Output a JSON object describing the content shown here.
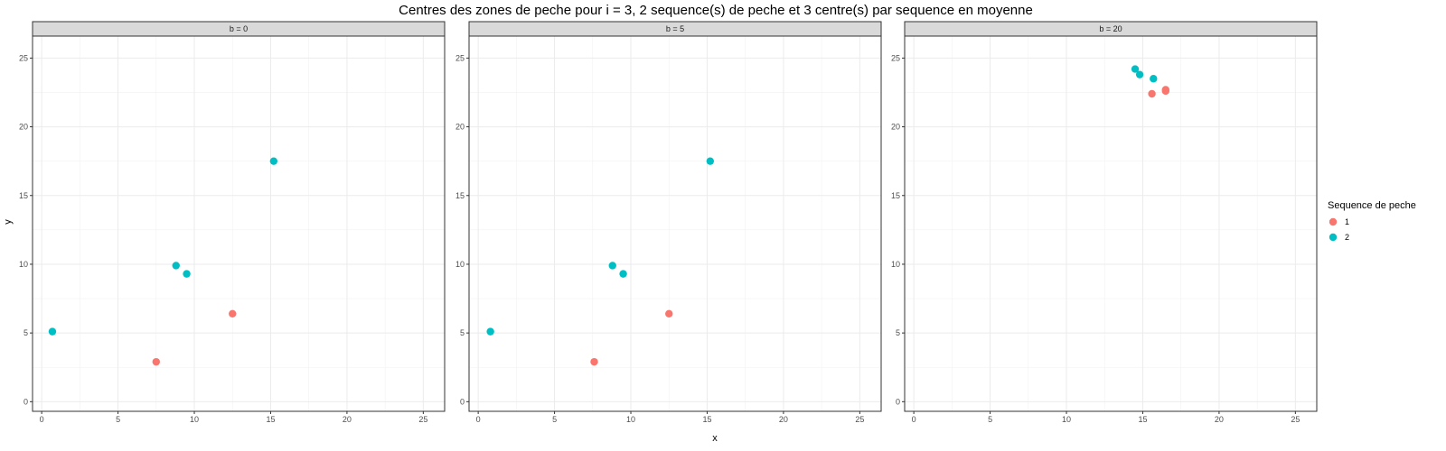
{
  "chart_data": {
    "type": "scatter",
    "title": "Centres des zones de peche pour i = 3, 2 sequence(s) de peche et 3 centre(s) par sequence en moyenne",
    "xlabel": "x",
    "ylabel": "y",
    "xlim": [
      -0.6,
      26.4
    ],
    "ylim": [
      -0.7,
      26.6
    ],
    "x_ticks": [
      0,
      5,
      10,
      15,
      20,
      25
    ],
    "y_ticks": [
      0,
      5,
      10,
      15,
      20,
      25
    ],
    "grid": true,
    "legend": {
      "title": "Sequence de peche",
      "placement": "right",
      "entries": [
        {
          "label": "1",
          "color": "#F8766D"
        },
        {
          "label": "2",
          "color": "#00BFC4"
        }
      ]
    },
    "facets": [
      {
        "label": "b = 0",
        "points": [
          {
            "x": 7.5,
            "y": 2.9,
            "series": "1"
          },
          {
            "x": 12.5,
            "y": 6.4,
            "series": "1"
          },
          {
            "x": 0.7,
            "y": 5.1,
            "series": "2"
          },
          {
            "x": 8.8,
            "y": 9.9,
            "series": "2"
          },
          {
            "x": 9.5,
            "y": 9.3,
            "series": "2"
          },
          {
            "x": 15.2,
            "y": 17.5,
            "series": "2"
          }
        ]
      },
      {
        "label": "b = 5",
        "points": [
          {
            "x": 7.6,
            "y": 2.9,
            "series": "1"
          },
          {
            "x": 12.5,
            "y": 6.4,
            "series": "1"
          },
          {
            "x": 0.8,
            "y": 5.1,
            "series": "2"
          },
          {
            "x": 8.8,
            "y": 9.9,
            "series": "2"
          },
          {
            "x": 9.5,
            "y": 9.3,
            "series": "2"
          },
          {
            "x": 15.2,
            "y": 17.5,
            "series": "2"
          }
        ]
      },
      {
        "label": "b = 20",
        "points": [
          {
            "x": 15.6,
            "y": 22.4,
            "series": "1"
          },
          {
            "x": 16.5,
            "y": 22.6,
            "series": "1"
          },
          {
            "x": 16.5,
            "y": 22.7,
            "series": "1"
          },
          {
            "x": 14.5,
            "y": 24.2,
            "series": "2"
          },
          {
            "x": 14.8,
            "y": 23.8,
            "series": "2"
          },
          {
            "x": 15.7,
            "y": 23.5,
            "series": "2"
          }
        ]
      }
    ]
  }
}
